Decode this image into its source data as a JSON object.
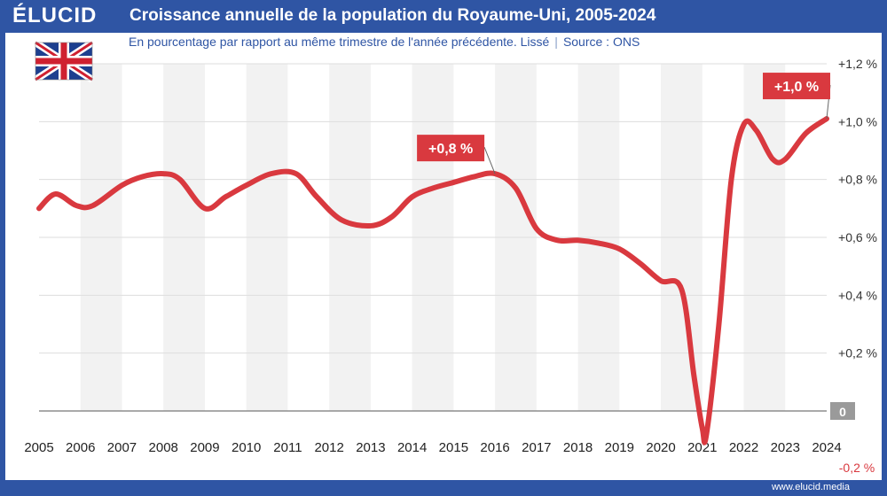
{
  "header": {
    "logo": "ÉLUCID",
    "title": "Croissance annuelle de la population du Royaume-Uni, 2005-2024"
  },
  "subtitle": "En pourcentage par rapport au même trimestre de l'année précédente. Lissé",
  "source": "Source : ONS",
  "footer": {
    "url": "www.elucid.media"
  },
  "flag": "united-kingdom-flag",
  "colors": {
    "frame": "#2f55a4",
    "line": "#d9393f",
    "label_bg": "#d9393f",
    "band": "#f2f2f2"
  },
  "chart_data": {
    "type": "line",
    "title": "Croissance annuelle de la population du Royaume-Uni, 2005-2024",
    "subtitle": "En pourcentage par rapport au même trimestre de l'année précédente. Lissé",
    "ylim": [
      -0.2,
      1.2
    ],
    "xlim": [
      2005,
      2024
    ],
    "y_ticks": [
      {
        "value": 1.2,
        "label": "+1,2 %"
      },
      {
        "value": 1.0,
        "label": "+1,0 %"
      },
      {
        "value": 0.8,
        "label": "+0,8 %"
      },
      {
        "value": 0.6,
        "label": "+0,6 %"
      },
      {
        "value": 0.4,
        "label": "+0,4 %"
      },
      {
        "value": 0.2,
        "label": "+0,2 %"
      },
      {
        "value": 0.0,
        "label": "0"
      },
      {
        "value": -0.2,
        "label": "-0,2 %"
      }
    ],
    "x_ticks": [
      "2005",
      "2006",
      "2007",
      "2008",
      "2009",
      "2010",
      "2011",
      "2012",
      "2013",
      "2014",
      "2015",
      "2016",
      "2017",
      "2018",
      "2019",
      "2020",
      "2021",
      "2022",
      "2023",
      "2024"
    ],
    "grid": true,
    "series": [
      {
        "x": [
          2005.0,
          2005.4,
          2005.9,
          2006.3,
          2007.0,
          2007.5,
          2008.0,
          2008.4,
          2009.0,
          2009.5,
          2010.0,
          2010.6,
          2011.2,
          2011.7,
          2012.3,
          2013.0,
          2013.5,
          2014.0,
          2014.5,
          2015.0,
          2015.5,
          2016.0,
          2016.5,
          2017.0,
          2017.5,
          2018.0,
          2018.5,
          2019.0,
          2019.5,
          2020.0,
          2020.5,
          2020.8,
          2021.0,
          2021.1,
          2021.4,
          2021.7,
          2022.0,
          2022.3,
          2022.7,
          2023.0,
          2023.5,
          2024.0
        ],
        "y": [
          0.7,
          0.75,
          0.71,
          0.71,
          0.78,
          0.81,
          0.82,
          0.8,
          0.7,
          0.74,
          0.78,
          0.82,
          0.82,
          0.74,
          0.66,
          0.64,
          0.67,
          0.74,
          0.77,
          0.79,
          0.81,
          0.82,
          0.77,
          0.63,
          0.59,
          0.59,
          0.58,
          0.56,
          0.51,
          0.45,
          0.42,
          0.12,
          -0.06,
          -0.08,
          0.3,
          0.8,
          0.99,
          0.97,
          0.87,
          0.87,
          0.96,
          1.01
        ]
      }
    ],
    "annotations": [
      {
        "label": "+0,8 %",
        "x": 2016.0,
        "y": 0.82
      },
      {
        "label": "+1,0 %",
        "x": 2024.0,
        "y": 1.01
      }
    ]
  }
}
